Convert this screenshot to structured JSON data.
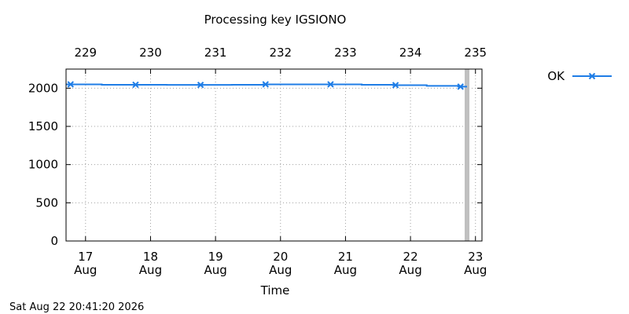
{
  "chart_data": {
    "type": "line",
    "title": "Processing key IGSIONO",
    "xlabel": "Time",
    "ylabel": "",
    "ylim": [
      0,
      2250
    ],
    "xlim": [
      16.7,
      23.1
    ],
    "yticks": [
      0,
      500,
      1000,
      1500,
      2000
    ],
    "bottom_ticks": [
      {
        "x": 17,
        "day": "17",
        "month": "Aug"
      },
      {
        "x": 18,
        "day": "18",
        "month": "Aug"
      },
      {
        "x": 19,
        "day": "19",
        "month": "Aug"
      },
      {
        "x": 20,
        "day": "20",
        "month": "Aug"
      },
      {
        "x": 21,
        "day": "21",
        "month": "Aug"
      },
      {
        "x": 22,
        "day": "22",
        "month": "Aug"
      },
      {
        "x": 23,
        "day": "23",
        "month": "Aug"
      }
    ],
    "top_ticks": [
      {
        "x": 17,
        "label": "229"
      },
      {
        "x": 18,
        "label": "230"
      },
      {
        "x": 19,
        "label": "231"
      },
      {
        "x": 20,
        "label": "232"
      },
      {
        "x": 21,
        "label": "233"
      },
      {
        "x": 22,
        "label": "234"
      },
      {
        "x": 23,
        "label": "235"
      }
    ],
    "grid": true,
    "legend_position": "right",
    "current_time_x": 22.87,
    "series": [
      {
        "name": "OK",
        "color": "#1f7de6",
        "step": true,
        "x": [
          16.7,
          17.25,
          17.75,
          18.25,
          18.75,
          19.25,
          19.75,
          20.25,
          20.75,
          21.25,
          21.75,
          22.25,
          22.75,
          22.87
        ],
        "y": [
          2050,
          2045,
          2045,
          2043,
          2043,
          2045,
          2050,
          2050,
          2050,
          2045,
          2040,
          2030,
          2020,
          2020
        ],
        "markers_x": [
          16.77,
          17.77,
          18.77,
          19.77,
          20.77,
          21.77,
          22.77
        ],
        "markers_y": [
          2050,
          2045,
          2043,
          2050,
          2050,
          2040,
          2020
        ]
      }
    ]
  },
  "footer": {
    "timestamp": "Sat Aug 22 20:41:20 2026"
  }
}
